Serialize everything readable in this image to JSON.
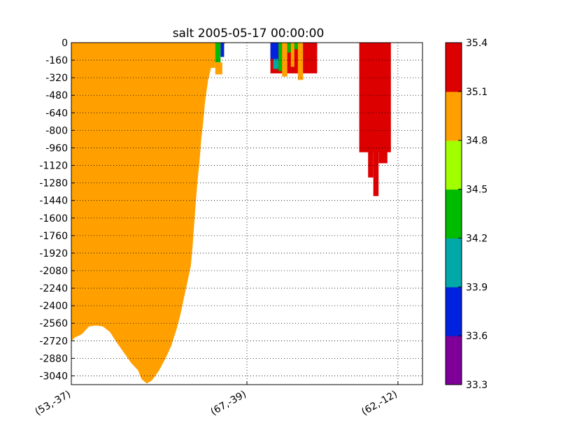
{
  "chart_data": {
    "type": "heatmap",
    "title": "salt 2005-05-17 00:00:00",
    "xlabel": "",
    "ylabel": "",
    "ylim": [
      -3120,
      0
    ],
    "xlim": [
      0,
      1
    ],
    "y_ticks": [
      0,
      -160,
      -320,
      -480,
      -640,
      -800,
      -960,
      -1120,
      -1280,
      -1440,
      -1600,
      -1760,
      -1920,
      -2080,
      -2240,
      -2400,
      -2560,
      -2720,
      -2880,
      -3040
    ],
    "x_ticks": [
      {
        "pos": 0.0,
        "label": "(53,-37)"
      },
      {
        "pos": 0.5,
        "label": "(67,-39)"
      },
      {
        "pos": 0.93,
        "label": "(62,-12)"
      }
    ],
    "grid": true,
    "colorbar": {
      "levels": [
        33.3,
        33.6,
        33.9,
        34.2,
        34.5,
        34.8,
        35.1,
        35.4
      ],
      "level_labels": [
        "33.3",
        "33.6",
        "33.9",
        "34.2",
        "34.5",
        "34.8",
        "35.1",
        "35.4"
      ],
      "colors": [
        "#7f0099",
        "#0021dd",
        "#00a8a8",
        "#00bb00",
        "#a2ff00",
        "#ffa000",
        "#dd0000"
      ]
    },
    "bottom_profile": [
      [
        0.0,
        -2720
      ],
      [
        0.01,
        -2690
      ],
      [
        0.03,
        -2660
      ],
      [
        0.05,
        -2590
      ],
      [
        0.07,
        -2580
      ],
      [
        0.09,
        -2590
      ],
      [
        0.11,
        -2640
      ],
      [
        0.13,
        -2740
      ],
      [
        0.15,
        -2830
      ],
      [
        0.17,
        -2920
      ],
      [
        0.19,
        -2990
      ],
      [
        0.2,
        -3070
      ],
      [
        0.215,
        -3110
      ],
      [
        0.23,
        -3080
      ],
      [
        0.25,
        -2990
      ],
      [
        0.27,
        -2870
      ],
      [
        0.285,
        -2760
      ],
      [
        0.3,
        -2610
      ],
      [
        0.31,
        -2490
      ],
      [
        0.32,
        -2340
      ],
      [
        0.33,
        -2190
      ],
      [
        0.34,
        -2040
      ],
      [
        0.345,
        -1870
      ],
      [
        0.35,
        -1650
      ],
      [
        0.355,
        -1430
      ],
      [
        0.36,
        -1240
      ],
      [
        0.365,
        -1090
      ],
      [
        0.37,
        -880
      ],
      [
        0.375,
        -740
      ],
      [
        0.38,
        -560
      ],
      [
        0.385,
        -440
      ],
      [
        0.39,
        -330
      ],
      [
        0.395,
        -270
      ],
      [
        0.4,
        -200
      ],
      [
        0.41,
        -120
      ],
      [
        0.42,
        -80
      ],
      [
        0.43,
        -30
      ],
      [
        0.44,
        0
      ]
    ],
    "patches": [
      {
        "salinity": 34.8,
        "x": [
          0.07,
          0.12
        ],
        "depth": [
          0,
          -130
        ]
      },
      {
        "salinity": 34.8,
        "x": [
          0.12,
          0.2
        ],
        "depth": [
          0,
          -90
        ]
      },
      {
        "salinity": 34.8,
        "x": [
          0.2,
          0.22
        ],
        "depth": [
          0,
          -40
        ]
      },
      {
        "salinity": 34.8,
        "x": [
          0.27,
          0.29
        ],
        "depth": [
          0,
          -15
        ]
      },
      {
        "salinity": 34.8,
        "x": [
          0.385,
          0.41
        ],
        "depth": [
          0,
          -230
        ]
      },
      {
        "salinity": 34.2,
        "x": [
          0.41,
          0.425
        ],
        "depth": [
          0,
          -180
        ]
      },
      {
        "salinity": 34.8,
        "x": [
          0.41,
          0.43
        ],
        "depth": [
          -180,
          -290
        ]
      },
      {
        "salinity": 33.6,
        "x": [
          0.425,
          0.435
        ],
        "depth": [
          0,
          -130
        ]
      },
      {
        "salinity": 35.1,
        "x": [
          0.567,
          0.7
        ],
        "depth": [
          0,
          -280
        ]
      },
      {
        "salinity": 33.6,
        "x": [
          0.567,
          0.59
        ],
        "depth": [
          0,
          -150
        ]
      },
      {
        "salinity": 33.9,
        "x": [
          0.575,
          0.59
        ],
        "depth": [
          -150,
          -240
        ]
      },
      {
        "salinity": 34.2,
        "x": [
          0.59,
          0.6
        ],
        "depth": [
          0,
          -260
        ]
      },
      {
        "salinity": 34.8,
        "x": [
          0.6,
          0.615
        ],
        "depth": [
          0,
          -310
        ]
      },
      {
        "salinity": 34.2,
        "x": [
          0.615,
          0.625
        ],
        "depth": [
          0,
          -90
        ]
      },
      {
        "salinity": 34.8,
        "x": [
          0.625,
          0.635
        ],
        "depth": [
          0,
          -220
        ]
      },
      {
        "salinity": 34.2,
        "x": [
          0.635,
          0.645
        ],
        "depth": [
          0,
          -60
        ]
      },
      {
        "salinity": 34.8,
        "x": [
          0.645,
          0.66
        ],
        "depth": [
          0,
          -340
        ]
      },
      {
        "salinity": 35.1,
        "x": [
          0.66,
          0.685
        ],
        "depth": [
          0,
          -270
        ]
      },
      {
        "salinity": 35.1,
        "x": [
          0.685,
          0.7
        ],
        "depth": [
          0,
          -80
        ]
      },
      {
        "salinity": 35.4,
        "x": [
          0.82,
          0.91
        ],
        "depth": [
          0,
          -1000
        ]
      },
      {
        "salinity": 35.1,
        "x": [
          0.845,
          0.86
        ],
        "depth": [
          -900,
          -1230
        ]
      },
      {
        "salinity": 35.1,
        "x": [
          0.86,
          0.875
        ],
        "depth": [
          -800,
          -1400
        ]
      },
      {
        "salinity": 35.1,
        "x": [
          0.875,
          0.9
        ],
        "depth": [
          -900,
          -1100
        ]
      }
    ]
  }
}
